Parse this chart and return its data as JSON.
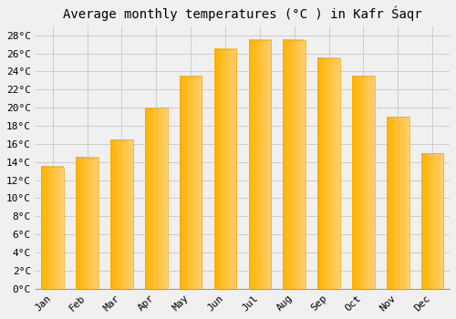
{
  "title": "Average monthly temperatures (°C ) in Kafr Śaqr",
  "months": [
    "Jan",
    "Feb",
    "Mar",
    "Apr",
    "May",
    "Jun",
    "Jul",
    "Aug",
    "Sep",
    "Oct",
    "Nov",
    "Dec"
  ],
  "values": [
    13.5,
    14.5,
    16.5,
    20.0,
    23.5,
    26.5,
    27.5,
    27.5,
    25.5,
    23.5,
    19.0,
    15.0
  ],
  "bar_color_left": "#FFB300",
  "bar_color_right": "#FFD070",
  "bar_edge_color": "#FFA500",
  "background_color": "#F0F0F0",
  "grid_color": "#CCCCCC",
  "ylim": [
    0,
    29
  ],
  "ytick_step": 2,
  "title_fontsize": 10,
  "tick_fontsize": 8,
  "font_family": "monospace"
}
